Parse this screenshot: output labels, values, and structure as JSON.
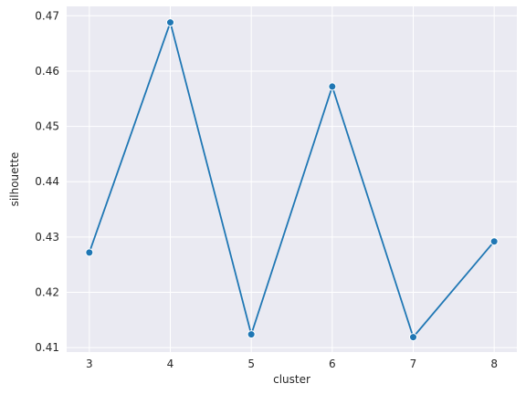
{
  "chart_data": {
    "type": "line",
    "x": [
      3,
      4,
      5,
      6,
      7,
      8
    ],
    "y": [
      0.4272,
      0.4688,
      0.4124,
      0.4572,
      0.4119,
      0.4292
    ],
    "xlabel": "cluster",
    "ylabel": "silhouette",
    "xlim": [
      2.72,
      8.28
    ],
    "ylim": [
      0.4092,
      0.4717
    ],
    "xticks": [
      3,
      4,
      5,
      6,
      7,
      8
    ],
    "yticks": [
      0.41,
      0.42,
      0.43,
      0.44,
      0.45,
      0.46,
      0.47
    ],
    "ytick_labels": [
      "0.41",
      "0.42",
      "0.43",
      "0.44",
      "0.45",
      "0.46",
      "0.47"
    ],
    "grid": true,
    "line_color": "#1f77b4",
    "background_color": "#eaeaf2",
    "marker": "circle"
  }
}
